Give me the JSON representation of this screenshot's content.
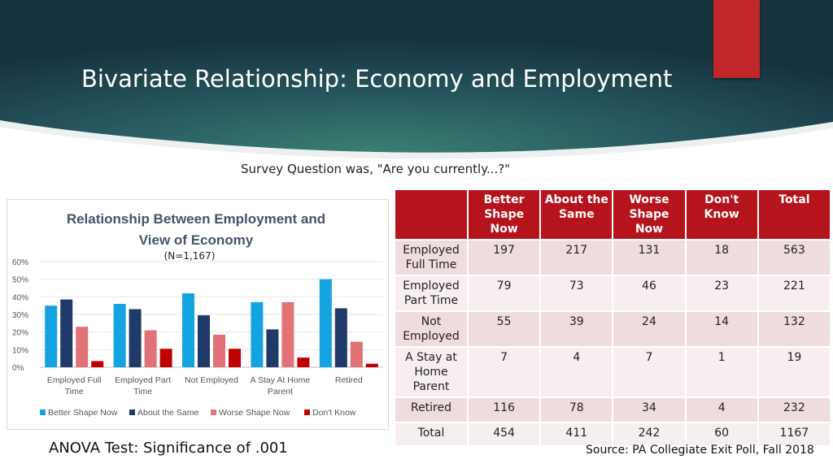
{
  "slide": {
    "title": "Bivariate Relationship: Economy and Employment",
    "survey_question": "Survey Question was, \"Are you currently...?\"",
    "anova": "ANOVA Test: Significance of .001",
    "source": "Source: PA Collegiate Exit Poll, Fall 2018"
  },
  "colors": {
    "header_dark": "#173a4a",
    "header_mid": "#2f6f6a",
    "accent_red": "#c0262a",
    "table_header": "#b5141c",
    "row_a": "#eedcde",
    "row_b": "#f7eeef"
  },
  "chart_data": {
    "type": "bar",
    "title_line1": "Relationship  Between Employment  and",
    "title_line2": "View of Economy",
    "subtitle": "(N=1,167)",
    "categories": [
      [
        "Employed Full",
        "Time"
      ],
      [
        "Employed Part",
        "Time"
      ],
      [
        "Not Employed"
      ],
      [
        "A Stay At Home",
        "Parent"
      ],
      [
        "Retired"
      ]
    ],
    "series": [
      {
        "name": "Better Shape Now",
        "color": "#14a3e0",
        "values": [
          35,
          36,
          42,
          37,
          50
        ]
      },
      {
        "name": "About the Same",
        "color": "#1f3a68",
        "values": [
          38.5,
          33,
          29.5,
          21.5,
          33.5
        ]
      },
      {
        "name": "Worse Shape Now",
        "color": "#e07278",
        "values": [
          23,
          21,
          18.5,
          37,
          14.5
        ]
      },
      {
        "name": "Don't Know",
        "color": "#c00000",
        "values": [
          3.5,
          10.5,
          10.5,
          5.5,
          2
        ]
      }
    ],
    "y_ticks": [
      "0%",
      "10%",
      "20%",
      "30%",
      "40%",
      "50%",
      "60%"
    ],
    "ylim": [
      0,
      60
    ],
    "legend_position": "bottom"
  },
  "table": {
    "headers": [
      "",
      "Better Shape Now",
      "About the Same",
      "Worse Shape Now",
      "Don't Know",
      "Total"
    ],
    "rows": [
      {
        "label": "Employed Full Time",
        "values": [
          "197",
          "217",
          "131",
          "18",
          "563"
        ]
      },
      {
        "label": "Employed Part Time",
        "values": [
          "79",
          "73",
          "46",
          "23",
          "221"
        ]
      },
      {
        "label": "Not Employed",
        "values": [
          "55",
          "39",
          "24",
          "14",
          "132"
        ]
      },
      {
        "label": "A Stay at Home Parent",
        "values": [
          "7",
          "4",
          "7",
          "1",
          "19"
        ]
      },
      {
        "label": "Retired",
        "values": [
          "116",
          "78",
          "34",
          "4",
          "232"
        ]
      },
      {
        "label": "Total",
        "values": [
          "454",
          "411",
          "242",
          "60",
          "1167"
        ]
      }
    ]
  }
}
